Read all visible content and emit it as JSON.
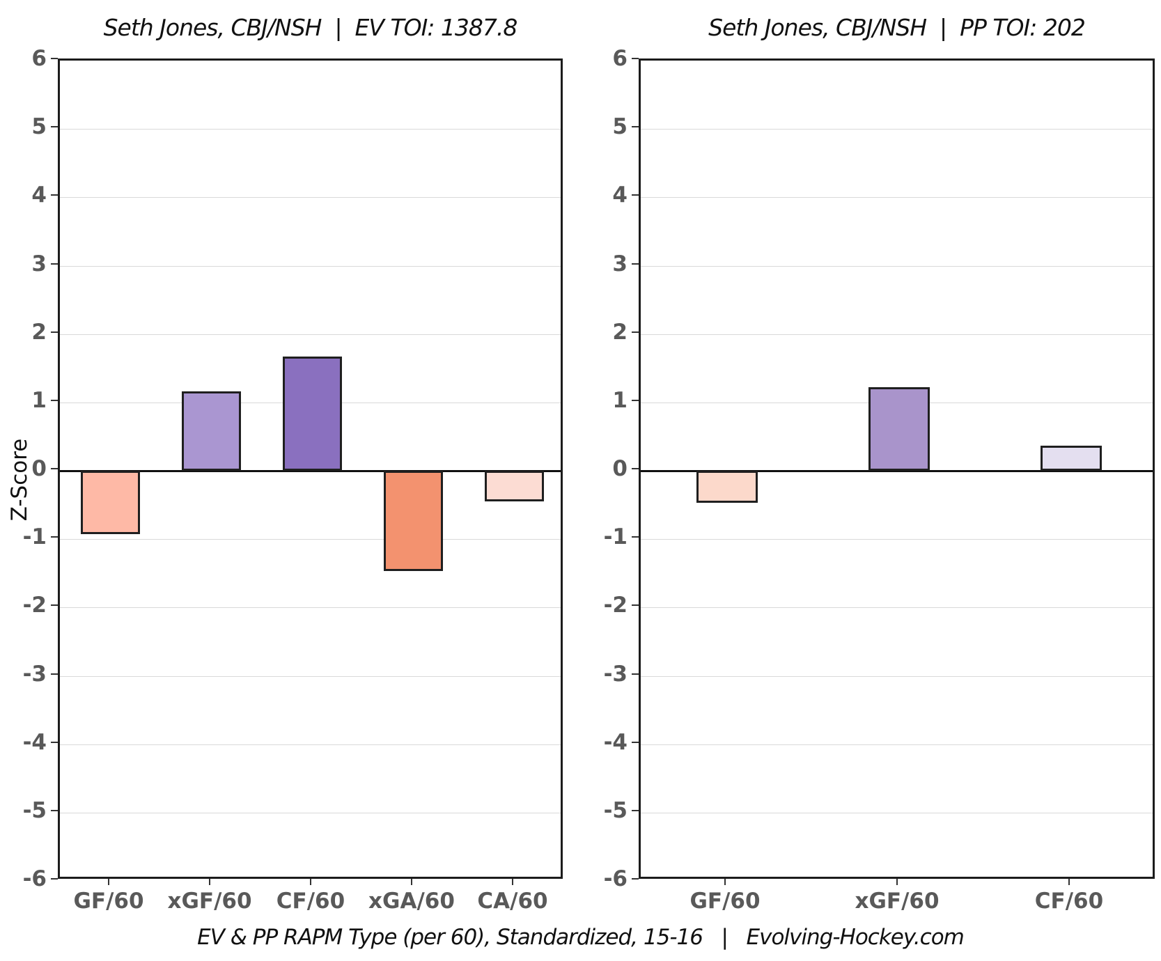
{
  "page": {
    "caption": "EV & PP RAPM Type (per 60), Standardized, 15-16   |   Evolving-Hockey.com"
  },
  "axis": {
    "ylabel": "Z-Score",
    "ylim": [
      -6,
      6
    ],
    "yticks": [
      6,
      5,
      4,
      3,
      2,
      1,
      0,
      -1,
      -2,
      -3,
      -4,
      -5,
      -6
    ],
    "grid": true,
    "zero_line_color": "#111111",
    "gridline_color": "#d9d9d9",
    "tick_label_color": "#595959",
    "panel_border_color": "#1c1c1c"
  },
  "chart_data": [
    {
      "type": "bar",
      "title": "Seth Jones, CBJ/NSH  |  EV TOI: 1387.8",
      "ylabel": "Z-Score",
      "categories": [
        "GF/60",
        "xGF/60",
        "CF/60",
        "xGA/60",
        "CA/60"
      ],
      "values": [
        -0.93,
        1.16,
        1.67,
        -1.47,
        -0.45
      ],
      "bar_colors": [
        "#feb9a6",
        "#aa96d1",
        "#8a70bf",
        "#f3926f",
        "#fcdcd3"
      ],
      "ylim": [
        -6,
        6
      ],
      "legend": "none"
    },
    {
      "type": "bar",
      "title": "Seth Jones, CBJ/NSH  |  PP TOI: 202",
      "ylabel": "Z-Score",
      "categories": [
        "GF/60",
        "xGF/60",
        "CF/60"
      ],
      "values": [
        -0.47,
        1.22,
        0.37
      ],
      "bar_colors": [
        "#fcd9cb",
        "#a994cb",
        "#e4dff0"
      ],
      "ylim": [
        -6,
        6
      ],
      "legend": "none"
    }
  ]
}
